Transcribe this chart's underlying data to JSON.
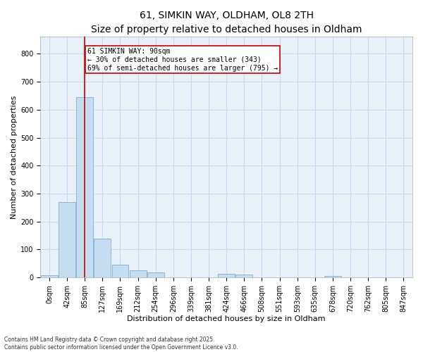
{
  "title_line1": "61, SIMKIN WAY, OLDHAM, OL8 2TH",
  "title_line2": "Size of property relative to detached houses in Oldham",
  "xlabel": "Distribution of detached houses by size in Oldham",
  "ylabel": "Number of detached properties",
  "footnote1": "Contains HM Land Registry data © Crown copyright and database right 2025.",
  "footnote2": "Contains public sector information licensed under the Open Government Licence v3.0.",
  "bar_labels": [
    "0sqm",
    "42sqm",
    "85sqm",
    "127sqm",
    "169sqm",
    "212sqm",
    "254sqm",
    "296sqm",
    "339sqm",
    "381sqm",
    "424sqm",
    "466sqm",
    "508sqm",
    "551sqm",
    "593sqm",
    "635sqm",
    "678sqm",
    "720sqm",
    "762sqm",
    "805sqm",
    "847sqm"
  ],
  "bar_values": [
    7,
    270,
    645,
    140,
    45,
    25,
    17,
    0,
    0,
    0,
    13,
    10,
    0,
    0,
    0,
    0,
    5,
    0,
    0,
    0,
    0
  ],
  "bar_color": "#c5ddf0",
  "bar_edge_color": "#7bafd4",
  "grid_color": "#c8d8ea",
  "background_color": "#e8f0f8",
  "vline_x": 2,
  "vline_color": "#cc0000",
  "annotation_text": "61 SIMKIN WAY: 90sqm\n← 30% of detached houses are smaller (343)\n69% of semi-detached houses are larger (795) →",
  "annotation_box_color": "#cc0000",
  "ylim": [
    0,
    860
  ],
  "yticks": [
    0,
    100,
    200,
    300,
    400,
    500,
    600,
    700,
    800
  ],
  "title_fontsize": 10,
  "subtitle_fontsize": 9,
  "axis_label_fontsize": 8,
  "tick_fontsize": 7,
  "annotation_fontsize": 7,
  "ylabel_fontsize": 8
}
